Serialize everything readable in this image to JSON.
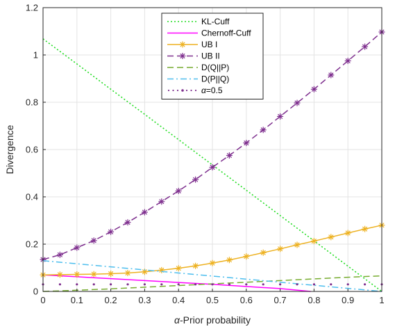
{
  "chart_data": {
    "type": "line",
    "xlabel_prefix": "α",
    "xlabel_rest": "-Prior probability",
    "ylabel": "Divergence",
    "xlim": [
      0,
      1
    ],
    "ylim": [
      0,
      1.2
    ],
    "x_ticks": [
      0,
      0.1,
      0.2,
      0.3,
      0.4,
      0.5,
      0.6,
      0.7,
      0.8,
      0.9,
      1
    ],
    "x_tick_labels": [
      "0",
      "0.1",
      "0.2",
      "0.3",
      "0.4",
      "0.5",
      "0.6",
      "0.7",
      "0.8",
      "0.9",
      "1"
    ],
    "y_ticks": [
      0,
      0.2,
      0.4,
      0.6,
      0.8,
      1,
      1.2
    ],
    "y_tick_labels": [
      "0",
      "0.2",
      "0.4",
      "0.6",
      "0.8",
      "1",
      "1.2"
    ],
    "grid": true,
    "legend_position": "top-center",
    "series": [
      {
        "name": "KL-Cuff",
        "style": "dotted",
        "color": "#22dd22",
        "marker": "none",
        "x": [
          0,
          0.1,
          0.2,
          0.3,
          0.4,
          0.5,
          0.6,
          0.7,
          0.8,
          0.9,
          1
        ],
        "y": [
          1.068,
          0.962,
          0.855,
          0.749,
          0.642,
          0.535,
          0.428,
          0.321,
          0.214,
          0.107,
          0
        ]
      },
      {
        "name": "Chernoff-Cuff",
        "style": "solid",
        "color": "#ff00ff",
        "marker": "none",
        "x": [
          0,
          0.1,
          0.2,
          0.3,
          0.4,
          0.5,
          0.6,
          0.7,
          0.79
        ],
        "y": [
          0.07,
          0.062,
          0.054,
          0.046,
          0.038,
          0.03,
          0.021,
          0.012,
          0
        ]
      },
      {
        "name": "UB I",
        "style": "solid",
        "color": "#edb120",
        "marker": "asterisk",
        "x": [
          0,
          0.05,
          0.1,
          0.15,
          0.2,
          0.25,
          0.3,
          0.35,
          0.4,
          0.45,
          0.5,
          0.55,
          0.6,
          0.65,
          0.7,
          0.75,
          0.8,
          0.85,
          0.9,
          0.95,
          1
        ],
        "y": [
          0.07,
          0.071,
          0.072,
          0.073,
          0.075,
          0.078,
          0.083,
          0.09,
          0.098,
          0.108,
          0.12,
          0.133,
          0.148,
          0.164,
          0.18,
          0.197,
          0.213,
          0.23,
          0.247,
          0.264,
          0.28
        ]
      },
      {
        "name": "UB II",
        "style": "dashed",
        "color": "#7e2f8e",
        "marker": "asterisk",
        "x": [
          0,
          0.05,
          0.1,
          0.15,
          0.2,
          0.25,
          0.3,
          0.35,
          0.4,
          0.45,
          0.5,
          0.55,
          0.6,
          0.65,
          0.7,
          0.75,
          0.8,
          0.85,
          0.9,
          0.95,
          1
        ],
        "y": [
          0.135,
          0.155,
          0.185,
          0.215,
          0.252,
          0.292,
          0.335,
          0.38,
          0.425,
          0.473,
          0.525,
          0.575,
          0.628,
          0.683,
          0.74,
          0.797,
          0.855,
          0.915,
          0.975,
          1.035,
          1.097
        ]
      },
      {
        "name": "D(Q||P)",
        "style": "dashed",
        "color": "#77ac30",
        "marker": "none",
        "x": [
          0,
          0.1,
          0.2,
          0.3,
          0.4,
          0.5,
          0.6,
          0.7,
          0.8,
          0.9,
          1
        ],
        "y": [
          0,
          0.005,
          0.011,
          0.018,
          0.025,
          0.032,
          0.039,
          0.046,
          0.053,
          0.06,
          0.066
        ]
      },
      {
        "name": "D(P||Q)",
        "style": "dashdot",
        "color": "#4dbeee",
        "marker": "none",
        "x": [
          0,
          0.1,
          0.2,
          0.3,
          0.4,
          0.5,
          0.6,
          0.7,
          0.8,
          0.9,
          1
        ],
        "y": [
          0.13,
          0.117,
          0.104,
          0.091,
          0.078,
          0.065,
          0.052,
          0.039,
          0.026,
          0.013,
          0
        ]
      },
      {
        "name": "α=0.5",
        "name_prefix": "α",
        "name_rest": "=0.5",
        "style": "dotted",
        "color": "#7e2f8e",
        "marker": "point",
        "x": [
          0,
          0.05,
          0.1,
          0.15,
          0.2,
          0.25,
          0.3,
          0.35,
          0.4,
          0.45,
          0.5,
          0.55,
          0.6,
          0.65,
          0.7,
          0.75,
          0.8,
          0.85,
          0.9,
          0.95,
          1
        ],
        "y": [
          0.03,
          0.03,
          0.03,
          0.03,
          0.03,
          0.03,
          0.03,
          0.03,
          0.03,
          0.03,
          0.03,
          0.03,
          0.03,
          0.03,
          0.03,
          0.03,
          0.03,
          0.03,
          0.03,
          0.03,
          0.03
        ]
      }
    ]
  }
}
